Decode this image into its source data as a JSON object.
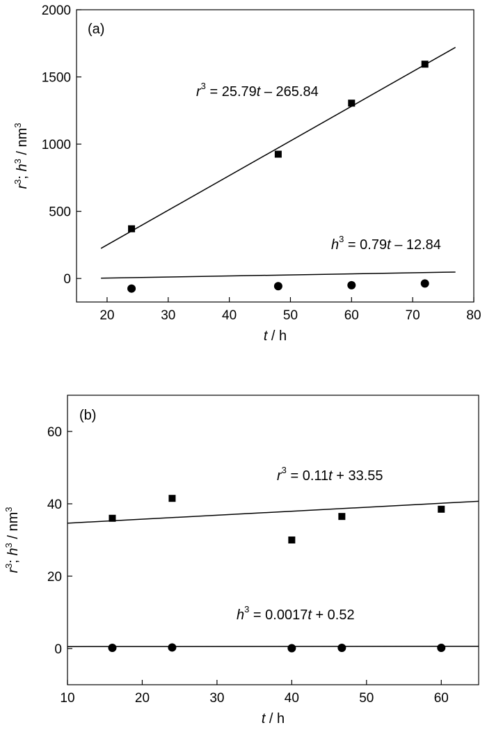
{
  "chart_data": [
    {
      "type": "scatter",
      "panel_label": "(a)",
      "xlabel": {
        "var": "t",
        "unit": " / h"
      },
      "ylabel": {
        "var1": "r",
        "sep": "; ",
        "var2": "h",
        "unit": " / nm",
        "exp": "3"
      },
      "xlim": [
        15,
        80
      ],
      "ylim": [
        -175,
        2000
      ],
      "xticks": [
        20,
        30,
        40,
        50,
        60,
        70,
        80
      ],
      "yticks": [
        0,
        500,
        1000,
        1500,
        2000
      ],
      "series": [
        {
          "marker": "square",
          "points": [
            [
              24,
              370
            ],
            [
              48,
              925
            ],
            [
              60,
              1305
            ],
            [
              72,
              1595
            ]
          ],
          "fit": {
            "slope": 25.79,
            "intercept": -265.84,
            "x_range": [
              19,
              77
            ]
          },
          "equation": {
            "var": "r",
            "exp": "3",
            "lhs_rest": " = 25.79",
            "tvar": "t",
            "rhs": " – 265.84"
          }
        },
        {
          "marker": "circle",
          "points": [
            [
              24,
              -75
            ],
            [
              48,
              -57
            ],
            [
              60,
              -50
            ],
            [
              72,
              -37
            ]
          ],
          "fit": {
            "slope": 0.79,
            "intercept": -12.84,
            "x_range": [
              19,
              77
            ]
          },
          "equation": {
            "var": "h",
            "exp": "3",
            "lhs_rest": " = 0.79",
            "tvar": "t",
            "rhs": " – 12.84"
          }
        }
      ]
    },
    {
      "type": "scatter",
      "panel_label": "(b)",
      "xlabel": {
        "var": "t",
        "unit": " / h"
      },
      "ylabel": {
        "var1": "r",
        "sep": "; ",
        "var2": "h",
        "unit": " / nm",
        "exp": "3"
      },
      "xlim": [
        10,
        65
      ],
      "ylim": [
        -10,
        70
      ],
      "xticks": [
        10,
        20,
        30,
        40,
        50,
        60
      ],
      "yticks": [
        0,
        20,
        40,
        60
      ],
      "series": [
        {
          "marker": "square",
          "points": [
            [
              16,
              36
            ],
            [
              24,
              41.5
            ],
            [
              40,
              30
            ],
            [
              46.7,
              36.5
            ],
            [
              60,
              38.5
            ]
          ],
          "fit": {
            "slope": 0.11,
            "intercept": 33.55,
            "x_range": [
              10,
              65
            ]
          },
          "equation": {
            "var": "r",
            "exp": "3",
            "lhs_rest": " = 0.11",
            "tvar": "t",
            "rhs": " + 33.55"
          }
        },
        {
          "marker": "circle",
          "points": [
            [
              16,
              0.2
            ],
            [
              24,
              0.3
            ],
            [
              40,
              0.1
            ],
            [
              46.7,
              0.2
            ],
            [
              60,
              0.2
            ]
          ],
          "fit": {
            "slope": 0.0017,
            "intercept": 0.52,
            "x_range": [
              10,
              65
            ]
          },
          "equation": {
            "var": "h",
            "exp": "3",
            "lhs_rest": " = 0.0017",
            "tvar": "t",
            "rhs": " + 0.52"
          }
        }
      ]
    }
  ]
}
